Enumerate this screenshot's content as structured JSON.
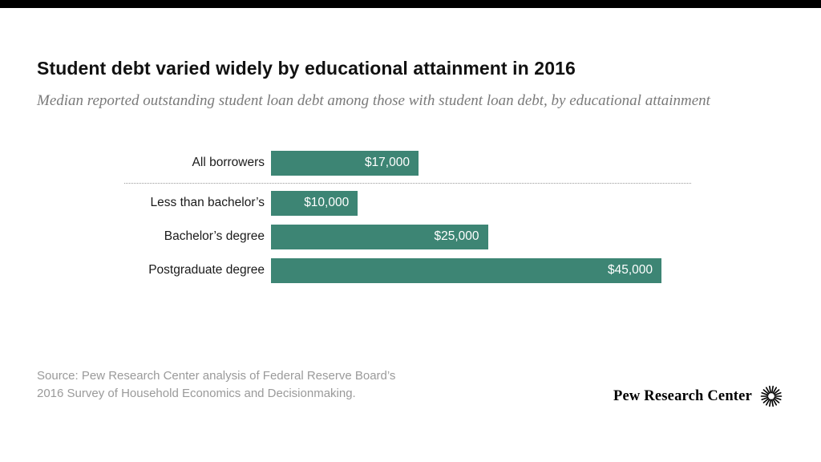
{
  "top_bar_color": "#000000",
  "header": {
    "title": "Student debt varied widely by educational attainment in 2016",
    "subtitle": "Median reported outstanding student loan debt among those with student loan debt, by educational attainment"
  },
  "chart_data": {
    "type": "bar",
    "orientation": "horizontal",
    "categories": [
      "All borrowers",
      "Less than bachelor’s",
      "Bachelor’s degree",
      "Postgraduate degree"
    ],
    "values": [
      17000,
      10000,
      25000,
      45000
    ],
    "value_labels": [
      "$17,000",
      "$10,000",
      "$25,000",
      "$45,000"
    ],
    "bar_color": "#3d8574",
    "xlim": [
      0,
      45000
    ],
    "separator_after_index": 0,
    "legend": "none",
    "grid": "off"
  },
  "footer": {
    "source_line1": "Source: Pew Research Center analysis of Federal Reserve Board’s",
    "source_line2": "2016 Survey of Household Economics and Decisionmaking.",
    "brand": "Pew Research Center"
  }
}
